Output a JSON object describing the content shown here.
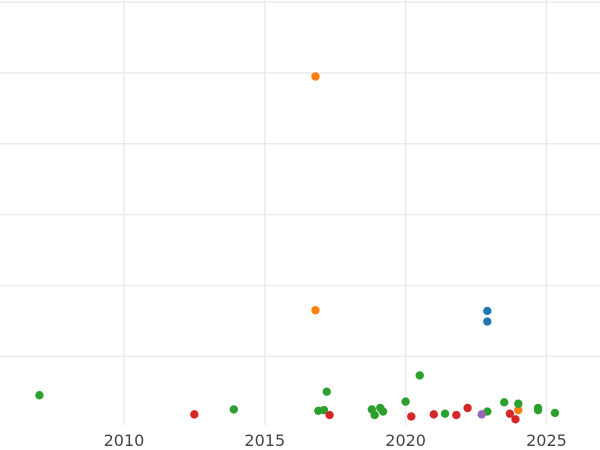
{
  "chart_data": {
    "type": "scatter",
    "title": "",
    "xlabel": "",
    "ylabel": "",
    "xlim": [
      2005.6,
      2026.9
    ],
    "ylim": [
      -0.1,
      5.9
    ],
    "x_ticks": [
      2010,
      2015,
      2020,
      2025
    ],
    "x_tick_labels": [
      "2010",
      "2015",
      "2020",
      "2025"
    ],
    "y_gridlines": [
      5.87,
      4.87,
      3.87,
      2.87,
      1.87,
      0.87
    ],
    "grid": true,
    "legend": "none",
    "series": [
      {
        "color": "#1f77b4",
        "points": [
          [
            2022.9,
            1.51
          ],
          [
            2022.9,
            1.36
          ]
        ]
      },
      {
        "color": "#ff7f0e",
        "points": [
          [
            2016.8,
            4.82
          ],
          [
            2016.8,
            1.52
          ],
          [
            2024.0,
            0.11
          ]
        ]
      },
      {
        "color": "#2ca02c",
        "points": [
          [
            2007.0,
            0.32
          ],
          [
            2013.9,
            0.12
          ],
          [
            2016.9,
            0.1
          ],
          [
            2017.1,
            0.11
          ],
          [
            2017.2,
            0.37
          ],
          [
            2018.8,
            0.12
          ],
          [
            2018.9,
            0.04
          ],
          [
            2019.1,
            0.14
          ],
          [
            2019.2,
            0.09
          ],
          [
            2020.0,
            0.23
          ],
          [
            2020.5,
            0.6
          ],
          [
            2021.4,
            0.06
          ],
          [
            2022.9,
            0.09
          ],
          [
            2023.5,
            0.22
          ],
          [
            2024.0,
            0.2
          ],
          [
            2024.7,
            0.14
          ],
          [
            2024.7,
            0.11
          ],
          [
            2025.3,
            0.07
          ]
        ]
      },
      {
        "color": "#d62728",
        "points": [
          [
            2012.5,
            0.05
          ],
          [
            2017.3,
            0.04
          ],
          [
            2020.2,
            0.02
          ],
          [
            2021.0,
            0.05
          ],
          [
            2021.8,
            0.04
          ],
          [
            2022.2,
            0.14
          ],
          [
            2023.7,
            0.06
          ],
          [
            2023.9,
            -0.02
          ]
        ]
      },
      {
        "color": "#9467bd",
        "points": [
          [
            2022.7,
            0.05
          ]
        ]
      }
    ]
  }
}
